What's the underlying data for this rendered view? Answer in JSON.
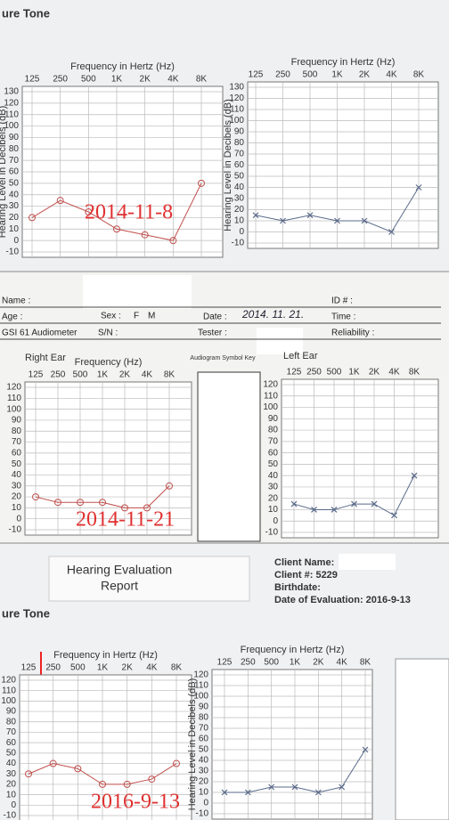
{
  "chart_data": [
    {
      "type": "line",
      "title": "Frequency in Hertz (Hz)",
      "y_label": "Hearing Level in Decibels (dB)",
      "annotation": "2014-11-8",
      "categories": [
        "125",
        "250",
        "500",
        "1K",
        "2K",
        "4K",
        "8K"
      ],
      "values": [
        20,
        35,
        25,
        10,
        5,
        0,
        50
      ],
      "color": "#c0504d",
      "marker": "circle",
      "ylim": [
        -10,
        130
      ],
      "yticks": [
        -10,
        0,
        10,
        20,
        30,
        40,
        50,
        60,
        70,
        80,
        90,
        100,
        110,
        120,
        130
      ],
      "grid": true
    },
    {
      "type": "line",
      "title": "Frequency in Hertz (Hz)",
      "y_label": "Hearing Level in Decibels (dB)",
      "categories": [
        "125",
        "250",
        "500",
        "1K",
        "2K",
        "4K",
        "8K"
      ],
      "values": [
        15,
        10,
        15,
        10,
        10,
        0,
        40
      ],
      "color": "#5a6a8a",
      "marker": "cross",
      "ylim": [
        -10,
        130
      ],
      "yticks": [
        -10,
        0,
        10,
        20,
        30,
        40,
        50,
        60,
        70,
        80,
        90,
        100,
        110,
        120,
        130
      ],
      "grid": true
    },
    {
      "type": "line",
      "title": "Frequency (Hz)",
      "annotation": "2014-11-21",
      "categories": [
        "125",
        "250",
        "500",
        "1K",
        "2K",
        "4K",
        "8K"
      ],
      "values": [
        20,
        15,
        15,
        15,
        10,
        10,
        30
      ],
      "color": "#c0504d",
      "marker": "circle",
      "ylim": [
        -10,
        120
      ],
      "yticks": [
        -10,
        0,
        10,
        20,
        30,
        40,
        50,
        60,
        70,
        80,
        90,
        100,
        110,
        120
      ],
      "grid": true
    },
    {
      "type": "line",
      "categories": [
        "125",
        "250",
        "500",
        "1K",
        "2K",
        "4K",
        "8K"
      ],
      "values": [
        15,
        10,
        10,
        15,
        15,
        5,
        40
      ],
      "color": "#5a6a8a",
      "marker": "cross",
      "ylim": [
        -10,
        120
      ],
      "yticks": [
        -10,
        0,
        10,
        20,
        30,
        40,
        50,
        60,
        70,
        80,
        90,
        100,
        110,
        120
      ],
      "grid": true
    },
    {
      "type": "line",
      "title": "Frequency in Hertz (Hz)",
      "annotation": "2016-9-13",
      "categories": [
        "125",
        "250",
        "500",
        "1K",
        "2K",
        "4K",
        "8K"
      ],
      "values": [
        30,
        40,
        35,
        20,
        20,
        25,
        40
      ],
      "color": "#c0504d",
      "marker": "circle",
      "ylim": [
        -10,
        120
      ],
      "yticks": [
        -10,
        0,
        10,
        20,
        30,
        40,
        50,
        60,
        70,
        80,
        90,
        100,
        110,
        120
      ],
      "grid": true
    },
    {
      "type": "line",
      "title": "Frequency in Hertz (Hz)",
      "y_label": "Hearing Level in Decibels (dB)",
      "categories": [
        "125",
        "250",
        "500",
        "1K",
        "2K",
        "4K",
        "8K"
      ],
      "values": [
        10,
        10,
        15,
        15,
        10,
        15,
        50
      ],
      "color": "#5a6a8a",
      "marker": "cross",
      "ylim": [
        -10,
        120
      ],
      "yticks": [
        -10,
        0,
        10,
        20,
        30,
        40,
        50,
        60,
        70,
        80,
        90,
        100,
        110,
        120
      ],
      "grid": true
    }
  ],
  "panels": {
    "first": {
      "heading": "ure Tone"
    },
    "second": {
      "name": "Name :",
      "id": "ID # :",
      "age": "Age :",
      "sex": "Sex :",
      "sex_f": "F",
      "sex_m": "M",
      "date": "Date :",
      "date_value": "2014. 11. 21.",
      "time": "Time :",
      "device": "GSI 61 Audiometer",
      "serial": "S/N :",
      "tester": "Tester :",
      "reliability": "Reliability :",
      "right_ear": "Right Ear",
      "left_ear": "Left Ear",
      "key_title": "Audiogram Symbol Key"
    },
    "third": {
      "report_title": "Hearing Evaluation",
      "report_sub": "Report",
      "client_name": "Client Name:",
      "client_no": "Client #: 5229",
      "birthdate": "Birthdate:",
      "eval_date": "Date of Evaluation: 2016-9-13",
      "heading": "ure Tone"
    }
  }
}
